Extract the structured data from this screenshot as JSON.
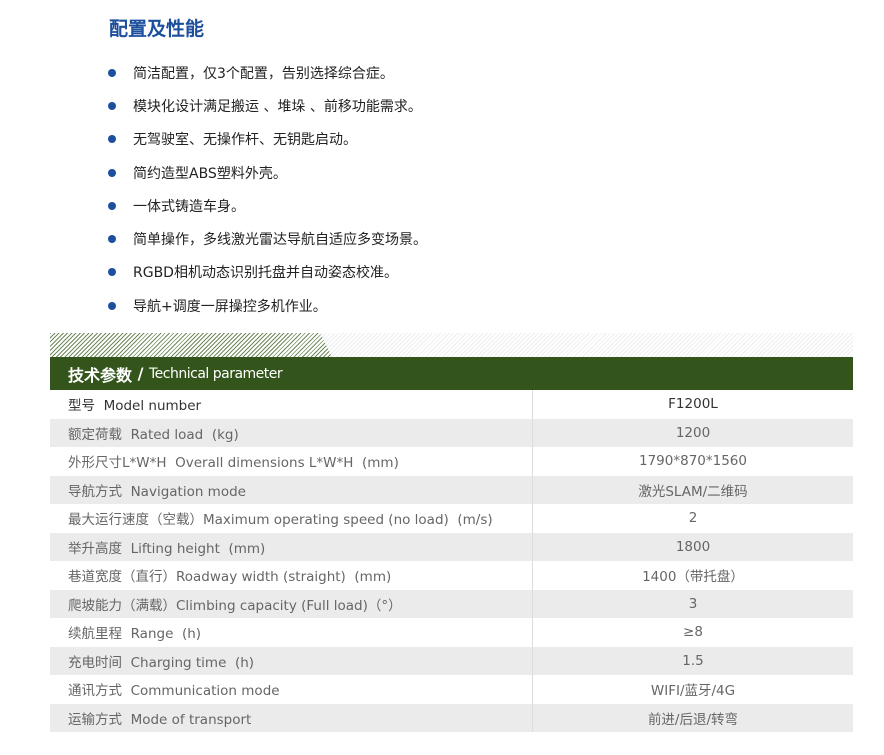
{
  "title": "配置及性能",
  "features": [
    "简洁配置，仅3个配置，告别选择综合症。",
    "模块化设计满足搬运 、堆垛 、前移功能需求。",
    "无驾驶室、无操作杆、无钥匙启动。",
    "简约造型ABS塑料外壳。",
    "一体式铸造车身。",
    "简单操作，多线激光雷达导航自适应多变场景。",
    "RGBD相机动态识别托盘并自动姿态校准。",
    "导航+调度一屏操控多机作业。"
  ],
  "table": {
    "header_cn": "技术参数",
    "header_sep": " / ",
    "header_en": "Technical parameter",
    "rows": [
      {
        "k": "型号  Model number",
        "v": "F1200L"
      },
      {
        "k": "额定荷载  Rated load  (kg)",
        "v": "1200"
      },
      {
        "k": "外形尺寸L*W*H  Overall dimensions L*W*H  (mm)",
        "v": "1790*870*1560"
      },
      {
        "k": "导航方式  Navigation mode",
        "v": "激光SLAM/二维码"
      },
      {
        "k": "最大运行速度（空载）Maximum operating speed (no load)  (m/s)",
        "v": "2"
      },
      {
        "k": "举升高度  Lifting height  (mm)",
        "v": "1800"
      },
      {
        "k": "巷道宽度（直行）Roadway width (straight)  (mm)",
        "v": "1400（带托盘）"
      },
      {
        "k": "爬坡能力（满载）Climbing capacity (Full load)（°）",
        "v": "3"
      },
      {
        "k": "续航里程  Range  (h)",
        "v": "≥8"
      },
      {
        "k": "充电时间  Charging time  (h)",
        "v": "1.5"
      },
      {
        "k": "通讯方式  Communication mode",
        "v": "WIFI/蓝牙/4G"
      },
      {
        "k": "运输方式  Mode of transport",
        "v": "前进/后退/转弯"
      }
    ]
  },
  "colors": {
    "accent": "#1d4f9c",
    "header": "#33551b"
  }
}
